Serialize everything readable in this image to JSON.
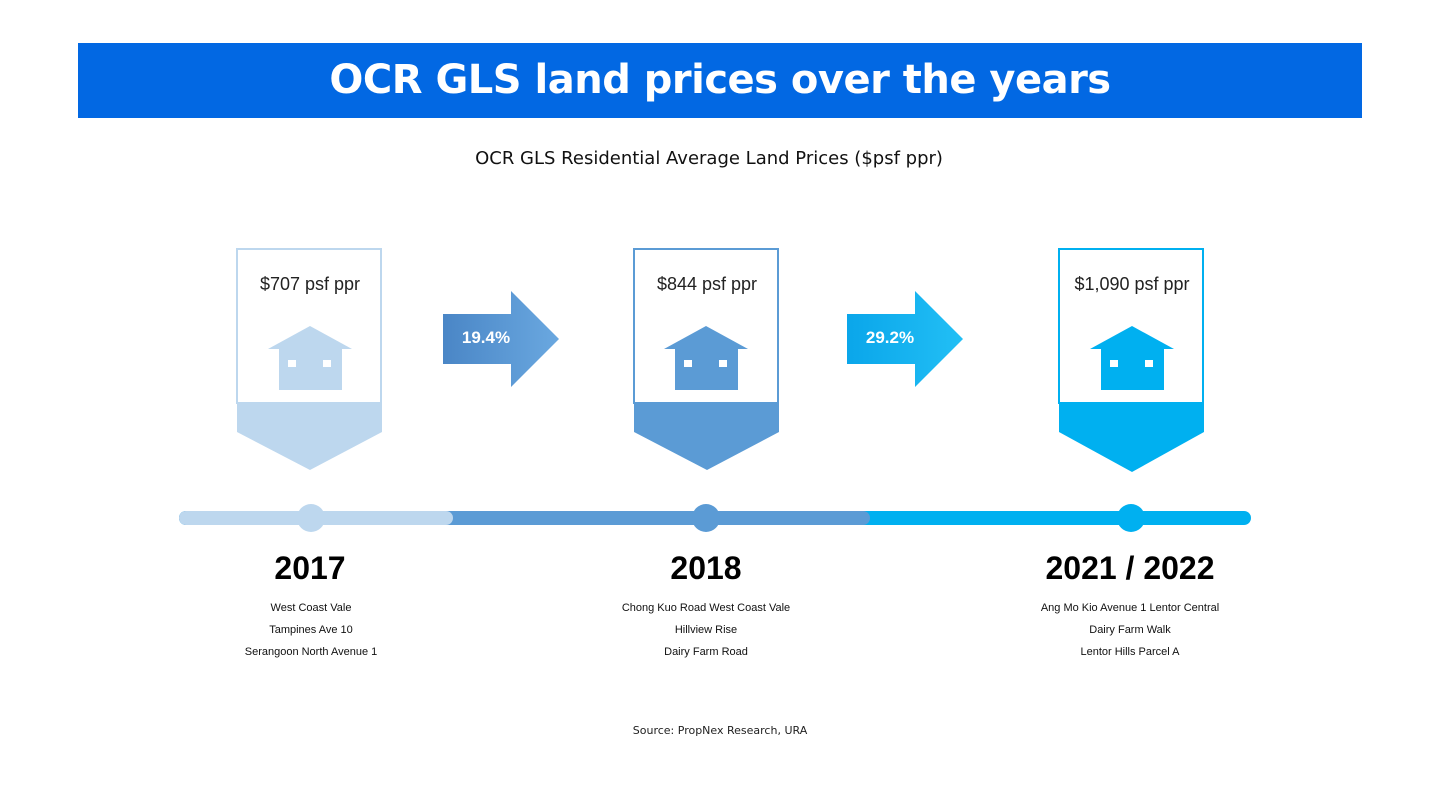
{
  "title": "OCR GLS land prices over the years",
  "subtitle": "OCR GLS Residential Average Land Prices ($psf ppr)",
  "colors": {
    "banner": "#0268e3",
    "period_2017": "#bdd7ee",
    "period_2018": "#5b9bd5",
    "period_2021": "#00b0f0"
  },
  "periods": [
    {
      "year": "2017",
      "price": "$707 psf ppr",
      "locations": [
        "West Coast Vale",
        "Tampines Ave 10",
        "Serangoon North Avenue 1"
      ]
    },
    {
      "year": "2018",
      "price": "$844 psf ppr",
      "locations": [
        "Chong Kuo Road West Coast Vale",
        "Hillview Rise",
        "Dairy Farm Road"
      ]
    },
    {
      "year": "2021 / 2022",
      "price": "$1,090 psf ppr",
      "locations": [
        "Ang Mo Kio Avenue 1 Lentor Central",
        "Dairy Farm Walk",
        "Lentor Hills Parcel A"
      ]
    }
  ],
  "changes": [
    "19.4%",
    "29.2%"
  ],
  "source": "Source: PropNex Research, URA"
}
